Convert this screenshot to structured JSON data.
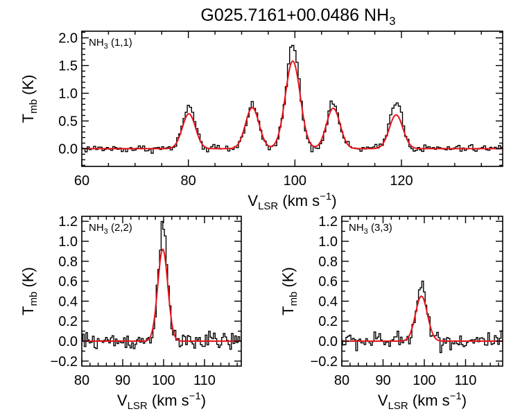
{
  "figure": {
    "title_main": "G025.7161+00.0486 NH",
    "title_sub": "3"
  },
  "colors": {
    "observed": "#000000",
    "fit": "#e8121a"
  },
  "chart_data": [
    {
      "type": "line",
      "panel": "NH3 (1,1)",
      "label_main": "NH",
      "label_sub": "3",
      "label_rest": " (1,1)",
      "xlabel_main": "V",
      "xlabel_sub": "LSR",
      "xlabel_rest": " (km s",
      "xlabel_sup": "−1",
      "xlabel_end": ")",
      "ylabel_main": "T",
      "ylabel_sub": "mb",
      "ylabel_rest": " (K)",
      "xlim": [
        60,
        139
      ],
      "ylim": [
        -0.32,
        2.12
      ],
      "xticks": [
        60,
        80,
        100,
        120
      ],
      "xminor": 5,
      "yticks": [
        0.0,
        0.5,
        1.0,
        1.5,
        2.0
      ],
      "yminor": 0.1,
      "xtick_labels": [
        "60",
        "80",
        "100",
        "120"
      ],
      "ytick_labels": [
        "0.0",
        "0.5",
        "1.0",
        "1.5",
        "2.0"
      ],
      "noise_rms": 0.035,
      "peaks": [
        {
          "center": 80.1,
          "fit_amp": 0.63,
          "obs_amp": 0.76,
          "fwhm": 2.9
        },
        {
          "center": 92.0,
          "fit_amp": 0.74,
          "obs_amp": 0.8,
          "fwhm": 3.0
        },
        {
          "center": 99.6,
          "fit_amp": 1.58,
          "obs_amp": 1.87,
          "fwhm": 3.3
        },
        {
          "center": 107.2,
          "fit_amp": 0.73,
          "obs_amp": 0.82,
          "fwhm": 3.0
        },
        {
          "center": 119.0,
          "fit_amp": 0.61,
          "obs_amp": 0.87,
          "fwhm": 3.0
        }
      ],
      "series": [
        {
          "name": "observed",
          "style": "histogram"
        },
        {
          "name": "fit",
          "style": "line"
        }
      ]
    },
    {
      "type": "line",
      "panel": "NH3 (2,2)",
      "label_main": "NH",
      "label_sub": "3",
      "label_rest": " (2,2)",
      "xlabel_main": "V",
      "xlabel_sub": "LSR",
      "xlabel_rest": " (km s",
      "xlabel_sup": "−1",
      "xlabel_end": ")",
      "ylabel_main": "T",
      "ylabel_sub": "mb",
      "ylabel_rest": " (K)",
      "xlim": [
        80,
        119
      ],
      "ylim": [
        -0.25,
        1.25
      ],
      "xticks": [
        80,
        90,
        100,
        110
      ],
      "xminor": 2,
      "yticks": [
        -0.2,
        0.0,
        0.2,
        0.4,
        0.6,
        0.8,
        1.0,
        1.2
      ],
      "yminor": 0.1,
      "xtick_labels": [
        "80",
        "90",
        "100",
        "110"
      ],
      "ytick_labels": [
        "−0.2",
        "0.0",
        "0.2",
        "0.4",
        "0.6",
        "0.8",
        "1.0",
        "1.2"
      ],
      "noise_rms": 0.045,
      "peaks": [
        {
          "center": 99.8,
          "fit_amp": 0.92,
          "obs_amp": 1.12,
          "fwhm": 2.9
        }
      ],
      "series": [
        {
          "name": "observed",
          "style": "histogram"
        },
        {
          "name": "fit",
          "style": "line"
        }
      ]
    },
    {
      "type": "line",
      "panel": "NH3 (3,3)",
      "label_main": "NH",
      "label_sub": "3",
      "label_rest": " (3,3)",
      "xlabel_main": "V",
      "xlabel_sub": "LSR",
      "xlabel_rest": " (km s",
      "xlabel_sup": "−1",
      "xlabel_end": ")",
      "ylabel_main": "T",
      "ylabel_sub": "mb",
      "ylabel_rest": " (K)",
      "xlim": [
        80,
        119
      ],
      "ylim": [
        -0.25,
        1.25
      ],
      "xticks": [
        80,
        90,
        100,
        110
      ],
      "xminor": 2,
      "yticks": [
        -0.2,
        0.0,
        0.2,
        0.4,
        0.6,
        0.8,
        1.0,
        1.2
      ],
      "yminor": 0.1,
      "xtick_labels": [
        "80",
        "90",
        "100",
        "110"
      ],
      "ytick_labels": [
        "−0.2",
        "0.0",
        "0.2",
        "0.4",
        "0.6",
        "0.8",
        "1.0",
        "1.2"
      ],
      "noise_rms": 0.045,
      "peaks": [
        {
          "center": 99.3,
          "fit_amp": 0.45,
          "obs_amp": 0.56,
          "fwhm": 3.4
        }
      ],
      "series": [
        {
          "name": "observed",
          "style": "histogram"
        },
        {
          "name": "fit",
          "style": "line"
        }
      ]
    }
  ]
}
